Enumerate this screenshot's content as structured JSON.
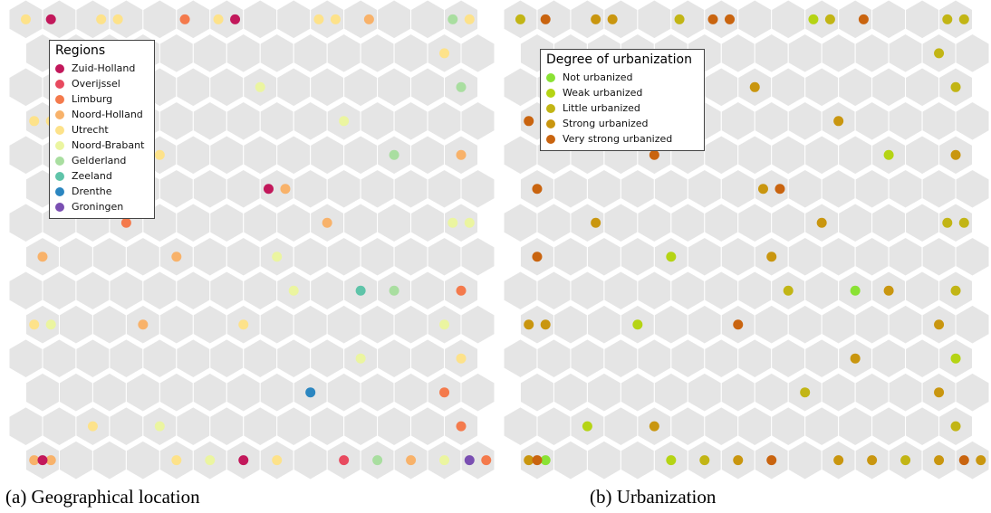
{
  "captions": {
    "a": "(a)  Geographical location",
    "b": "(b)  Urbanization"
  },
  "chart_data": [
    {
      "type": "scatter",
      "grid_type": "hexagonal",
      "grid": {
        "cols": 14,
        "rows": 14
      },
      "legend": {
        "title": "Regions",
        "position": "top-left",
        "entries": [
          {
            "label": "Zuid-Holland",
            "color": "#c2185b"
          },
          {
            "label": "Overijssel",
            "color": "#e84a5f"
          },
          {
            "label": "Limburg",
            "color": "#f47a4c"
          },
          {
            "label": "Noord-Holland",
            "color": "#f8b26a"
          },
          {
            "label": "Utrecht",
            "color": "#fde28a"
          },
          {
            "label": "Noord-Brabant",
            "color": "#ebf5a0"
          },
          {
            "label": "Gelderland",
            "color": "#a9dea0"
          },
          {
            "label": "Zeeland",
            "color": "#5fc4a9"
          },
          {
            "label": "Drenthe",
            "color": "#2b86c0"
          },
          {
            "label": "Groningen",
            "color": "#7a4fb2"
          }
        ]
      },
      "points": [
        {
          "row": 0,
          "col": 0,
          "off": 0.0,
          "cat": 4
        },
        {
          "row": 0,
          "col": 1,
          "off": -0.25,
          "cat": 0
        },
        {
          "row": 0,
          "col": 2,
          "off": 0.25,
          "cat": 4
        },
        {
          "row": 0,
          "col": 3,
          "off": -0.25,
          "cat": 4
        },
        {
          "row": 0,
          "col": 5,
          "off": -0.25,
          "cat": 2
        },
        {
          "row": 0,
          "col": 6,
          "off": -0.25,
          "cat": 4
        },
        {
          "row": 0,
          "col": 6,
          "off": 0.25,
          "cat": 0
        },
        {
          "row": 0,
          "col": 9,
          "off": -0.25,
          "cat": 4
        },
        {
          "row": 0,
          "col": 9,
          "off": 0.25,
          "cat": 4
        },
        {
          "row": 0,
          "col": 10,
          "off": 0.25,
          "cat": 3
        },
        {
          "row": 0,
          "col": 13,
          "off": -0.25,
          "cat": 6
        },
        {
          "row": 0,
          "col": 13,
          "off": 0.25,
          "cat": 4
        },
        {
          "row": 1,
          "col": 12,
          "off": 0.0,
          "cat": 4
        },
        {
          "row": 2,
          "col": 7,
          "off": 0.0,
          "cat": 5
        },
        {
          "row": 2,
          "col": 13,
          "off": 0.0,
          "cat": 6
        },
        {
          "row": 3,
          "col": 0,
          "off": -0.25,
          "cat": 4
        },
        {
          "row": 3,
          "col": 0,
          "off": 0.25,
          "cat": 4
        },
        {
          "row": 3,
          "col": 9,
          "off": 0.0,
          "cat": 5
        },
        {
          "row": 4,
          "col": 4,
          "off": 0.0,
          "cat": 4
        },
        {
          "row": 4,
          "col": 11,
          "off": 0.0,
          "cat": 6
        },
        {
          "row": 4,
          "col": 13,
          "off": 0.0,
          "cat": 3
        },
        {
          "row": 5,
          "col": 7,
          "off": -0.25,
          "cat": 0
        },
        {
          "row": 5,
          "col": 7,
          "off": 0.25,
          "cat": 3
        },
        {
          "row": 6,
          "col": 3,
          "off": 0.0,
          "cat": 2
        },
        {
          "row": 6,
          "col": 9,
          "off": 0.0,
          "cat": 3
        },
        {
          "row": 6,
          "col": 13,
          "off": -0.25,
          "cat": 5
        },
        {
          "row": 6,
          "col": 13,
          "off": 0.25,
          "cat": 5
        },
        {
          "row": 7,
          "col": 0,
          "off": 0.0,
          "cat": 3
        },
        {
          "row": 7,
          "col": 4,
          "off": 0.0,
          "cat": 3
        },
        {
          "row": 7,
          "col": 7,
          "off": 0.0,
          "cat": 5
        },
        {
          "row": 8,
          "col": 8,
          "off": 0.0,
          "cat": 5
        },
        {
          "row": 8,
          "col": 10,
          "off": 0.0,
          "cat": 7
        },
        {
          "row": 8,
          "col": 11,
          "off": 0.0,
          "cat": 6
        },
        {
          "row": 8,
          "col": 13,
          "off": 0.0,
          "cat": 2
        },
        {
          "row": 9,
          "col": 0,
          "off": -0.25,
          "cat": 4
        },
        {
          "row": 9,
          "col": 0,
          "off": 0.25,
          "cat": 5
        },
        {
          "row": 9,
          "col": 3,
          "off": 0.0,
          "cat": 3
        },
        {
          "row": 9,
          "col": 6,
          "off": 0.0,
          "cat": 4
        },
        {
          "row": 9,
          "col": 12,
          "off": 0.0,
          "cat": 5
        },
        {
          "row": 10,
          "col": 10,
          "off": 0.0,
          "cat": 5
        },
        {
          "row": 10,
          "col": 13,
          "off": 0.0,
          "cat": 4
        },
        {
          "row": 11,
          "col": 8,
          "off": 0.0,
          "cat": 8
        },
        {
          "row": 11,
          "col": 12,
          "off": 0.0,
          "cat": 2
        },
        {
          "row": 12,
          "col": 2,
          "off": 0.0,
          "cat": 4
        },
        {
          "row": 12,
          "col": 4,
          "off": 0.0,
          "cat": 5
        },
        {
          "row": 12,
          "col": 13,
          "off": 0.0,
          "cat": 2
        },
        {
          "row": 13,
          "col": 0,
          "off": -0.25,
          "cat": 3
        },
        {
          "row": 13,
          "col": 0,
          "off": 0.25,
          "cat": 3
        },
        {
          "row": 13,
          "col": 0,
          "off": 0.0,
          "cat": 0
        },
        {
          "row": 13,
          "col": 4,
          "off": 0.0,
          "cat": 4
        },
        {
          "row": 13,
          "col": 5,
          "off": 0.0,
          "cat": 5
        },
        {
          "row": 13,
          "col": 6,
          "off": 0.0,
          "cat": 0
        },
        {
          "row": 13,
          "col": 7,
          "off": 0.0,
          "cat": 4
        },
        {
          "row": 13,
          "col": 9,
          "off": 0.0,
          "cat": 1
        },
        {
          "row": 13,
          "col": 10,
          "off": 0.0,
          "cat": 6
        },
        {
          "row": 13,
          "col": 11,
          "off": 0.0,
          "cat": 3
        },
        {
          "row": 13,
          "col": 12,
          "off": 0.0,
          "cat": 5
        },
        {
          "row": 13,
          "col": 13,
          "off": -0.25,
          "cat": 9
        },
        {
          "row": 13,
          "col": 13,
          "off": 0.25,
          "cat": 2
        }
      ]
    },
    {
      "type": "scatter",
      "grid_type": "hexagonal",
      "grid": {
        "cols": 14,
        "rows": 14
      },
      "legend": {
        "title": "Degree of urbanization",
        "position": "top-left",
        "entries": [
          {
            "label": "Not urbanized",
            "color": "#8ae234"
          },
          {
            "label": "Weak urbanized",
            "color": "#b5d414"
          },
          {
            "label": "Little urbanized",
            "color": "#c2b515"
          },
          {
            "label": "Strong urbanized",
            "color": "#c9960f"
          },
          {
            "label": "Very strong urbanized",
            "color": "#c9640f"
          }
        ]
      },
      "points": [
        {
          "row": 0,
          "col": 0,
          "off": 0.0,
          "cat": 2
        },
        {
          "row": 0,
          "col": 1,
          "off": -0.25,
          "cat": 4
        },
        {
          "row": 0,
          "col": 2,
          "off": 0.25,
          "cat": 3
        },
        {
          "row": 0,
          "col": 3,
          "off": -0.25,
          "cat": 3
        },
        {
          "row": 0,
          "col": 5,
          "off": -0.25,
          "cat": 2
        },
        {
          "row": 0,
          "col": 6,
          "off": -0.25,
          "cat": 4
        },
        {
          "row": 0,
          "col": 6,
          "off": 0.25,
          "cat": 4
        },
        {
          "row": 0,
          "col": 9,
          "off": -0.25,
          "cat": 1
        },
        {
          "row": 0,
          "col": 9,
          "off": 0.25,
          "cat": 2
        },
        {
          "row": 0,
          "col": 10,
          "off": 0.25,
          "cat": 4
        },
        {
          "row": 0,
          "col": 13,
          "off": -0.25,
          "cat": 2
        },
        {
          "row": 0,
          "col": 13,
          "off": 0.25,
          "cat": 2
        },
        {
          "row": 1,
          "col": 12,
          "off": 0.0,
          "cat": 2
        },
        {
          "row": 2,
          "col": 7,
          "off": 0.0,
          "cat": 3
        },
        {
          "row": 2,
          "col": 13,
          "off": 0.0,
          "cat": 2
        },
        {
          "row": 3,
          "col": 0,
          "off": -0.25,
          "cat": 4
        },
        {
          "row": 3,
          "col": 0,
          "off": 0.25,
          "cat": 3
        },
        {
          "row": 3,
          "col": 9,
          "off": 0.0,
          "cat": 3
        },
        {
          "row": 4,
          "col": 4,
          "off": 0.0,
          "cat": 4
        },
        {
          "row": 4,
          "col": 11,
          "off": 0.0,
          "cat": 1
        },
        {
          "row": 4,
          "col": 13,
          "off": 0.0,
          "cat": 3
        },
        {
          "row": 5,
          "col": 0,
          "off": 0.0,
          "cat": 4
        },
        {
          "row": 5,
          "col": 7,
          "off": -0.25,
          "cat": 3
        },
        {
          "row": 5,
          "col": 7,
          "off": 0.25,
          "cat": 4
        },
        {
          "row": 6,
          "col": 2,
          "off": 0.25,
          "cat": 3
        },
        {
          "row": 6,
          "col": 9,
          "off": 0.0,
          "cat": 3
        },
        {
          "row": 6,
          "col": 13,
          "off": -0.25,
          "cat": 2
        },
        {
          "row": 6,
          "col": 13,
          "off": 0.25,
          "cat": 2
        },
        {
          "row": 7,
          "col": 0,
          "off": 0.0,
          "cat": 4
        },
        {
          "row": 7,
          "col": 4,
          "off": 0.0,
          "cat": 1
        },
        {
          "row": 7,
          "col": 7,
          "off": 0.0,
          "cat": 3
        },
        {
          "row": 8,
          "col": 8,
          "off": 0.0,
          "cat": 2
        },
        {
          "row": 8,
          "col": 10,
          "off": 0.0,
          "cat": 0
        },
        {
          "row": 8,
          "col": 11,
          "off": 0.0,
          "cat": 3
        },
        {
          "row": 8,
          "col": 13,
          "off": 0.0,
          "cat": 2
        },
        {
          "row": 9,
          "col": 0,
          "off": -0.25,
          "cat": 3
        },
        {
          "row": 9,
          "col": 0,
          "off": 0.25,
          "cat": 3
        },
        {
          "row": 9,
          "col": 3,
          "off": 0.0,
          "cat": 1
        },
        {
          "row": 9,
          "col": 6,
          "off": 0.0,
          "cat": 4
        },
        {
          "row": 9,
          "col": 12,
          "off": 0.0,
          "cat": 3
        },
        {
          "row": 10,
          "col": 10,
          "off": 0.0,
          "cat": 3
        },
        {
          "row": 10,
          "col": 13,
          "off": 0.0,
          "cat": 1
        },
        {
          "row": 11,
          "col": 8,
          "off": 0.0,
          "cat": 2
        },
        {
          "row": 11,
          "col": 12,
          "off": 0.0,
          "cat": 3
        },
        {
          "row": 12,
          "col": 2,
          "off": 0.0,
          "cat": 1
        },
        {
          "row": 12,
          "col": 4,
          "off": 0.0,
          "cat": 3
        },
        {
          "row": 12,
          "col": 13,
          "off": 0.0,
          "cat": 2
        },
        {
          "row": 13,
          "col": 0,
          "off": -0.25,
          "cat": 3
        },
        {
          "row": 13,
          "col": 0,
          "off": 0.25,
          "cat": 0
        },
        {
          "row": 13,
          "col": 0,
          "off": 0.0,
          "cat": 4
        },
        {
          "row": 13,
          "col": 4,
          "off": 0.0,
          "cat": 1
        },
        {
          "row": 13,
          "col": 5,
          "off": 0.0,
          "cat": 2
        },
        {
          "row": 13,
          "col": 6,
          "off": 0.0,
          "cat": 3
        },
        {
          "row": 13,
          "col": 7,
          "off": 0.0,
          "cat": 4
        },
        {
          "row": 13,
          "col": 9,
          "off": 0.0,
          "cat": 3
        },
        {
          "row": 13,
          "col": 10,
          "off": 0.0,
          "cat": 3
        },
        {
          "row": 13,
          "col": 11,
          "off": 0.0,
          "cat": 2
        },
        {
          "row": 13,
          "col": 12,
          "off": 0.0,
          "cat": 3
        },
        {
          "row": 13,
          "col": 13,
          "off": -0.25,
          "cat": 4
        },
        {
          "row": 13,
          "col": 13,
          "off": 0.25,
          "cat": 3
        }
      ]
    }
  ]
}
